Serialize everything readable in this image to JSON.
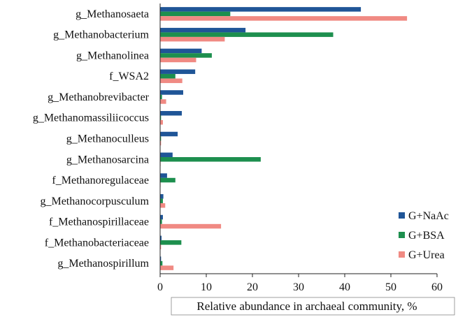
{
  "chart_data": {
    "type": "bar",
    "orientation": "horizontal",
    "title": "",
    "xlabel": "Relative abundance in archaeal community, %",
    "ylabel": "",
    "xlim": [
      0,
      60
    ],
    "xticks": [
      0,
      10,
      20,
      30,
      40,
      50,
      60
    ],
    "grid": false,
    "legend_position": "bottom-right",
    "categories": [
      "g_Methanosaeta",
      "g_Methanobacterium",
      "g_Methanolinea",
      "f_WSA2",
      "g_Methanobrevibacter",
      "g_Methanomassiliicoccus",
      "g_Methanoculleus",
      "g_Methanosarcina",
      "f_Methanoregulaceae",
      "g_Methanocorpusculum",
      "f_Methanospirillaceae",
      "f_Methanobacteriaceae",
      "g_Methanospirillum"
    ],
    "series": [
      {
        "name": "G+NaAc",
        "color": "#1f5597",
        "values": [
          43.5,
          18.5,
          9.0,
          7.6,
          5.0,
          4.7,
          3.8,
          2.7,
          1.5,
          0.7,
          0.6,
          0.3,
          0.2
        ]
      },
      {
        "name": "G+BSA",
        "color": "#1d8f4e",
        "values": [
          15.2,
          37.5,
          11.2,
          3.3,
          0.4,
          0.2,
          0.2,
          21.8,
          3.3,
          0.6,
          0.4,
          4.6,
          0.5
        ]
      },
      {
        "name": "G+Urea",
        "color": "#f08a83",
        "values": [
          53.5,
          14.0,
          7.8,
          4.8,
          1.3,
          0.6,
          0.2,
          0.1,
          0.1,
          1.1,
          13.2,
          0.2,
          2.9
        ]
      }
    ]
  }
}
